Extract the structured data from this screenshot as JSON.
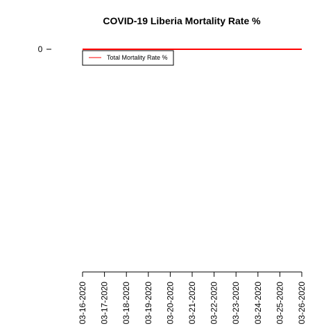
{
  "chart_data": {
    "type": "line",
    "title": "COVID-19 Liberia Mortality Rate %",
    "xlabel": "",
    "ylabel": "",
    "x": [
      "03-16-2020",
      "03-17-2020",
      "03-18-2020",
      "03-19-2020",
      "03-20-2020",
      "03-21-2020",
      "03-22-2020",
      "03-23-2020",
      "03-24-2020",
      "03-25-2020",
      "03-26-2020"
    ],
    "y_ticks": [
      0
    ],
    "series": [
      {
        "name": "Total Mortality Rate %",
        "color": "#ff0000",
        "values": [
          0,
          0,
          0,
          0,
          0,
          0,
          0,
          0,
          0,
          0,
          0
        ]
      }
    ],
    "legend_placement": "top-left",
    "grid": false
  }
}
